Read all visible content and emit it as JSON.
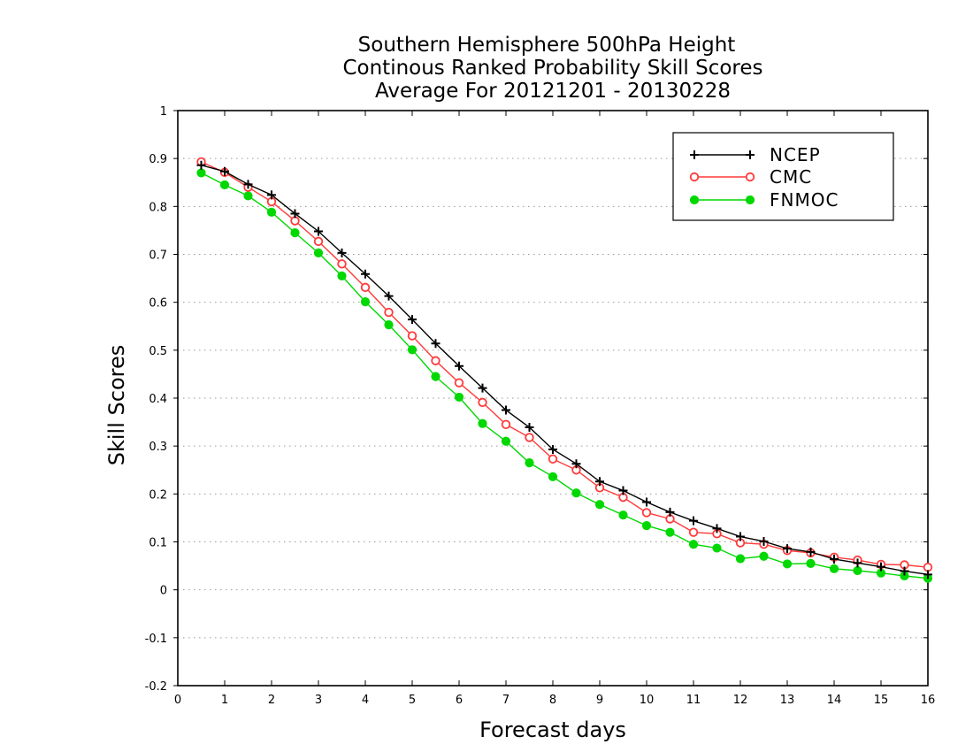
{
  "chart_data": {
    "type": "line",
    "title": [
      "Southern Hemisphere 500hPa Height",
      "Continous Ranked Probability Skill Scores",
      "Average For 20121201 - 20130228"
    ],
    "xlabel": "Forecast days",
    "ylabel": "Skill Scores",
    "xlim": [
      0,
      16
    ],
    "ylim": [
      -0.2,
      1
    ],
    "xticks": [
      0,
      1,
      2,
      3,
      4,
      5,
      6,
      7,
      8,
      9,
      10,
      11,
      12,
      13,
      14,
      15,
      16
    ],
    "xtick_labels": [
      "0",
      "1",
      "2",
      "3",
      "4",
      "5",
      "6",
      "7",
      "8",
      "9",
      "10",
      "11",
      "12",
      "13",
      "14",
      "15",
      "16"
    ],
    "yticks": [
      -0.2,
      -0.1,
      0,
      0.1,
      0.2,
      0.3,
      0.4,
      0.5,
      0.6,
      0.7,
      0.8,
      0.9,
      1
    ],
    "ytick_labels": [
      "-0.2",
      "-0.1",
      "0",
      "0.1",
      "0.2",
      "0.3",
      "0.4",
      "0.5",
      "0.6",
      "0.7",
      "0.8",
      "0.9",
      "1"
    ],
    "grid": "horizontal dotted",
    "legend_position": "top-right",
    "x": [
      0.5,
      1,
      1.5,
      2,
      2.5,
      3,
      3.5,
      4,
      4.5,
      5,
      5.5,
      6,
      6.5,
      7,
      7.5,
      8,
      8.5,
      9,
      9.5,
      10,
      10.5,
      11,
      11.5,
      12,
      12.5,
      13,
      13.5,
      14,
      14.5,
      15,
      15.5,
      16
    ],
    "series": [
      {
        "name": "NCEP",
        "color": "#000000",
        "marker": "plus",
        "values": [
          0.886,
          0.873,
          0.846,
          0.824,
          0.785,
          0.748,
          0.703,
          0.659,
          0.613,
          0.564,
          0.514,
          0.467,
          0.421,
          0.375,
          0.339,
          0.293,
          0.263,
          0.226,
          0.207,
          0.183,
          0.162,
          0.144,
          0.128,
          0.111,
          0.101,
          0.086,
          0.079,
          0.064,
          0.056,
          0.048,
          0.039,
          0.032
        ]
      },
      {
        "name": "CMC",
        "color": "#ff3a3a",
        "marker": "open-circle",
        "values": [
          0.893,
          0.871,
          0.84,
          0.81,
          0.77,
          0.727,
          0.68,
          0.631,
          0.579,
          0.53,
          0.478,
          0.432,
          0.391,
          0.345,
          0.318,
          0.273,
          0.25,
          0.213,
          0.193,
          0.161,
          0.148,
          0.12,
          0.117,
          0.098,
          0.095,
          0.082,
          0.077,
          0.068,
          0.062,
          0.053,
          0.052,
          0.047
        ]
      },
      {
        "name": "FNMOC",
        "color": "#00d800",
        "marker": "filled-circle",
        "values": [
          0.87,
          0.845,
          0.822,
          0.788,
          0.745,
          0.703,
          0.655,
          0.601,
          0.553,
          0.501,
          0.445,
          0.402,
          0.347,
          0.31,
          0.265,
          0.236,
          0.202,
          0.178,
          0.156,
          0.134,
          0.12,
          0.095,
          0.087,
          0.065,
          0.07,
          0.054,
          0.055,
          0.044,
          0.04,
          0.035,
          0.029,
          0.024
        ]
      }
    ]
  }
}
